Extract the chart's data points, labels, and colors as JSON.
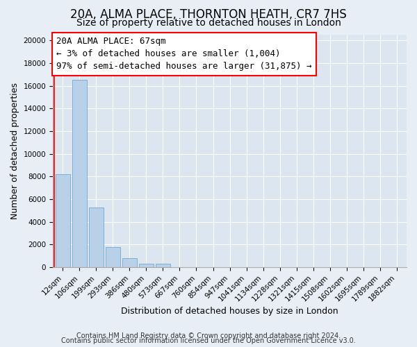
{
  "title": "20A, ALMA PLACE, THORNTON HEATH, CR7 7HS",
  "subtitle": "Size of property relative to detached houses in London",
  "xlabel": "Distribution of detached houses by size in London",
  "ylabel": "Number of detached properties",
  "bar_labels": [
    "12sqm",
    "106sqm",
    "199sqm",
    "293sqm",
    "386sqm",
    "480sqm",
    "573sqm",
    "667sqm",
    "760sqm",
    "854sqm",
    "947sqm",
    "1041sqm",
    "1134sqm",
    "1228sqm",
    "1321sqm",
    "1415sqm",
    "1508sqm",
    "1602sqm",
    "1695sqm",
    "1789sqm",
    "1882sqm"
  ],
  "bar_values": [
    8200,
    16500,
    5300,
    1800,
    800,
    300,
    300,
    0,
    0,
    0,
    0,
    0,
    0,
    0,
    0,
    0,
    0,
    0,
    0,
    0,
    0
  ],
  "bar_color": "#b8d0e8",
  "bar_edge_color": "#7bafd4",
  "annotation_line1": "20A ALMA PLACE: 67sqm",
  "annotation_line2": "← 3% of detached houses are smaller (1,004)",
  "annotation_line3": "97% of semi-detached houses are larger (31,875) →",
  "red_line_x": -0.5,
  "ylim": [
    0,
    20500
  ],
  "yticks": [
    0,
    2000,
    4000,
    6000,
    8000,
    10000,
    12000,
    14000,
    16000,
    18000,
    20000
  ],
  "footer_line1": "Contains HM Land Registry data © Crown copyright and database right 2024.",
  "footer_line2": "Contains public sector information licensed under the Open Government Licence v3.0.",
  "background_color": "#e8eef5",
  "plot_bg_color": "#dce6f0",
  "grid_color": "#ffffff",
  "title_fontsize": 12,
  "subtitle_fontsize": 10,
  "axis_label_fontsize": 9,
  "tick_fontsize": 7.5,
  "footer_fontsize": 7,
  "ann_fontsize": 9
}
